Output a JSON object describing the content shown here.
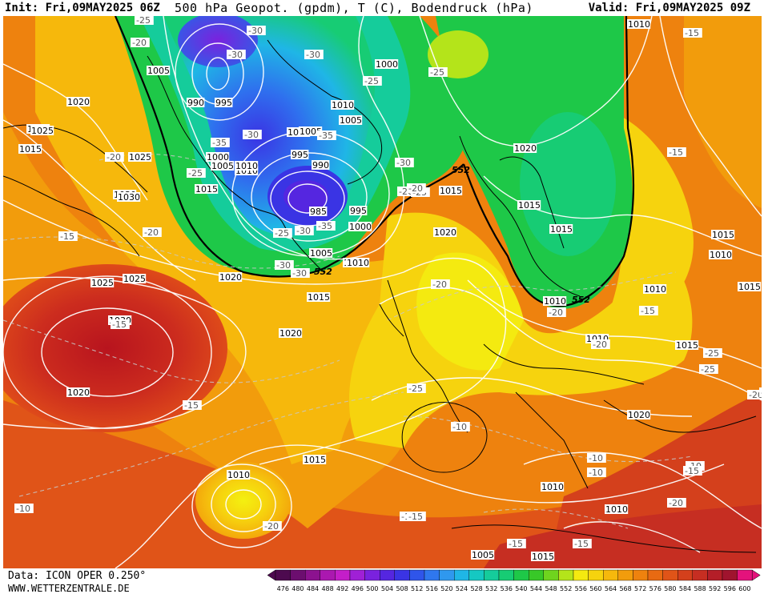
{
  "header": {
    "init": "Init: Fri,09MAY2025 06Z",
    "title": "500 hPa Geopot. (gpdm), T (C), Bodendruck (hPa)",
    "valid": "Valid: Fri,09MAY2025 09Z"
  },
  "footer": {
    "data_source": "Data: ICON OPER 0.250°",
    "website": "WWW.WETTERZENTRALE.DE"
  },
  "colorbar": {
    "ticks": [
      "476",
      "480",
      "484",
      "488",
      "492",
      "496",
      "500",
      "504",
      "508",
      "512",
      "516",
      "520",
      "524",
      "528",
      "532",
      "536",
      "540",
      "544",
      "548",
      "552",
      "556",
      "560",
      "564",
      "568",
      "572",
      "576",
      "580",
      "584",
      "588",
      "592",
      "596",
      "600"
    ],
    "colors": [
      "#4d0a4f",
      "#6c0e6f",
      "#8c128f",
      "#ab18b0",
      "#c41ec9",
      "#a020d6",
      "#7a22de",
      "#5526e0",
      "#3a34e4",
      "#2f55ea",
      "#2f77ee",
      "#2f98ee",
      "#1fb6e6",
      "#15c8c2",
      "#15cc9b",
      "#17cc74",
      "#1ec848",
      "#38c828",
      "#6fd41e",
      "#b4e41a",
      "#f4ea10",
      "#f6d30e",
      "#f6b80c",
      "#f29c0c",
      "#ee820e",
      "#e86a12",
      "#e05418",
      "#d4401c",
      "#c62e22",
      "#b41e28",
      "#a0142e",
      "#e4127c"
    ]
  },
  "map": {
    "contour_label": "552",
    "pressure_labels": [
      "1010",
      "1005",
      "990",
      "995",
      "1000",
      "1000",
      "1005",
      "1010",
      "1020",
      "1020",
      "1025",
      "1025",
      "1030",
      "1015",
      "1030",
      "1010",
      "1015",
      "1025",
      "1020",
      "1020",
      "1015",
      "1010",
      "1025",
      "1030",
      "1020",
      "1015",
      "1010",
      "1005",
      "995",
      "990",
      "985",
      "995",
      "1000",
      "1005",
      "1010",
      "1000",
      "1005",
      "1010",
      "1020",
      "1015",
      "1015",
      "1020",
      "1015",
      "1015",
      "1010",
      "1015",
      "1010",
      "1010",
      "1010",
      "1015",
      "1020",
      "1010",
      "1010",
      "1005",
      "1015"
    ],
    "temp_labels": [
      "-25",
      "-20",
      "-30",
      "-30",
      "-30",
      "-35",
      "-30",
      "-35",
      "-30",
      "-25",
      "-25",
      "-30",
      "-20",
      "-25",
      "-25",
      "-35",
      "-30",
      "-25",
      "-30",
      "-20",
      "-20",
      "-15",
      "-20",
      "-20",
      "-15",
      "-15",
      "-20",
      "-15",
      "-10",
      "-15",
      "-20",
      "-25",
      "-10",
      "-10",
      "-15",
      "-15",
      "-10",
      "-10",
      "-20",
      "-25",
      "-25",
      "-15",
      "-20",
      "-15",
      "-10",
      "-20",
      "-15",
      "-10"
    ]
  }
}
